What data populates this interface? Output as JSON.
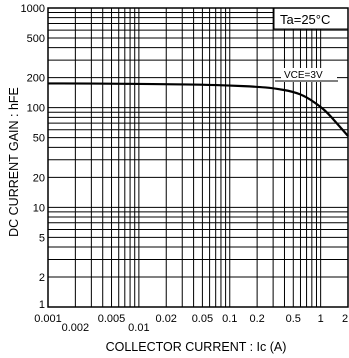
{
  "chart_data": {
    "type": "line",
    "xscale": "log",
    "yscale": "log",
    "xlim": [
      0.001,
      2
    ],
    "ylim": [
      1,
      1000
    ],
    "grid": true,
    "xlabel": "COLLECTOR CURRENT : Ic (A)",
    "ylabel": "DC  CURRENT GAIN : hFE",
    "x_ticks": [
      {
        "value": 0.001,
        "label": "0.001",
        "row": 0
      },
      {
        "value": 0.002,
        "label": "0.002",
        "row": 1
      },
      {
        "value": 0.005,
        "label": "0.005",
        "row": 0
      },
      {
        "value": 0.01,
        "label": "0.01",
        "row": 1
      },
      {
        "value": 0.02,
        "label": "0.02",
        "row": 0
      },
      {
        "value": 0.05,
        "label": "0.05",
        "row": 0
      },
      {
        "value": 0.1,
        "label": "0.1",
        "row": 0
      },
      {
        "value": 0.2,
        "label": "0.2",
        "row": 0
      },
      {
        "value": 0.5,
        "label": "0.5",
        "row": 0
      },
      {
        "value": 1,
        "label": "1",
        "row": 0
      },
      {
        "value": 2,
        "label": "2",
        "row": 0
      }
    ],
    "y_ticks": [
      {
        "value": 1000,
        "label": "1000"
      },
      {
        "value": 500,
        "label": "500"
      },
      {
        "value": 200,
        "label": "200"
      },
      {
        "value": 100,
        "label": "100"
      },
      {
        "value": 50,
        "label": "50"
      },
      {
        "value": 20,
        "label": "20"
      },
      {
        "value": 10,
        "label": "10"
      },
      {
        "value": 5,
        "label": "5"
      },
      {
        "value": 2,
        "label": "2"
      },
      {
        "value": 1,
        "label": "1"
      }
    ],
    "annotations": {
      "condition": "Ta=25°C",
      "curve_label": "VCE=3V"
    },
    "series": [
      {
        "x": [
          0.001,
          0.002,
          0.005,
          0.01,
          0.02,
          0.05,
          0.1,
          0.2,
          0.3,
          0.5,
          0.7,
          1.0,
          1.2,
          1.5,
          2.0
        ],
        "y": [
          175,
          175,
          174,
          173,
          172,
          170,
          167,
          162,
          157,
          145,
          128,
          102,
          88,
          70,
          52
        ]
      }
    ]
  }
}
